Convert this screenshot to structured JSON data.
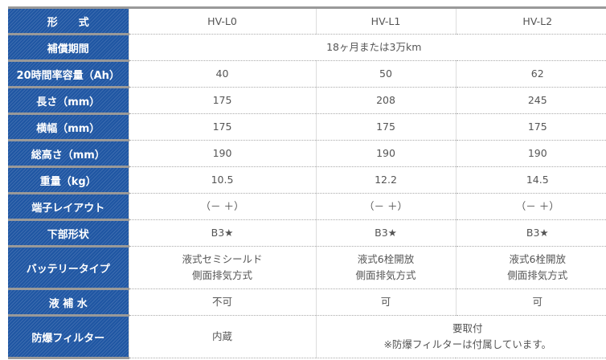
{
  "columns": [
    "HV-L0",
    "HV-L1",
    "HV-L2"
  ],
  "rows": [
    {
      "label": "形　　式",
      "values": [
        "HV-L0",
        "HV-L1",
        "HV-L2"
      ]
    },
    {
      "label": "補償期間",
      "merged": "18ヶ月または3万km"
    },
    {
      "label": "20時間率容量（Ah）",
      "values": [
        "40",
        "50",
        "62"
      ]
    },
    {
      "label": "長さ（mm）",
      "values": [
        "175",
        "208",
        "245"
      ]
    },
    {
      "label": "横幅（mm）",
      "values": [
        "175",
        "175",
        "175"
      ]
    },
    {
      "label": "総高さ（mm）",
      "values": [
        "190",
        "190",
        "190"
      ]
    },
    {
      "label": "重量（kg）",
      "values": [
        "10.5",
        "12.2",
        "14.5"
      ]
    },
    {
      "label": "端子レイアウト",
      "values": [
        "（－ ＋）",
        "（－ ＋）",
        "（－ ＋）"
      ]
    },
    {
      "label": "下部形状",
      "values": [
        "B3★",
        "B3★",
        "B3★"
      ]
    },
    {
      "label": "バッテリータイプ",
      "values": [
        [
          "液式セミシールド",
          "側面排気方式"
        ],
        [
          "液式6栓開放",
          "側面排気方式"
        ],
        [
          "液式6栓開放",
          "側面排気方式"
        ]
      ]
    },
    {
      "label": "液 補 水",
      "values": [
        "不可",
        "可",
        "可"
      ]
    },
    {
      "label": "防爆フィルター",
      "value0": "内蔵",
      "merged": [
        "要取付",
        "※防爆フィルターは付属しています。"
      ]
    }
  ],
  "colors": {
    "header_bg": "#1f56a3",
    "separator": "#999999"
  }
}
